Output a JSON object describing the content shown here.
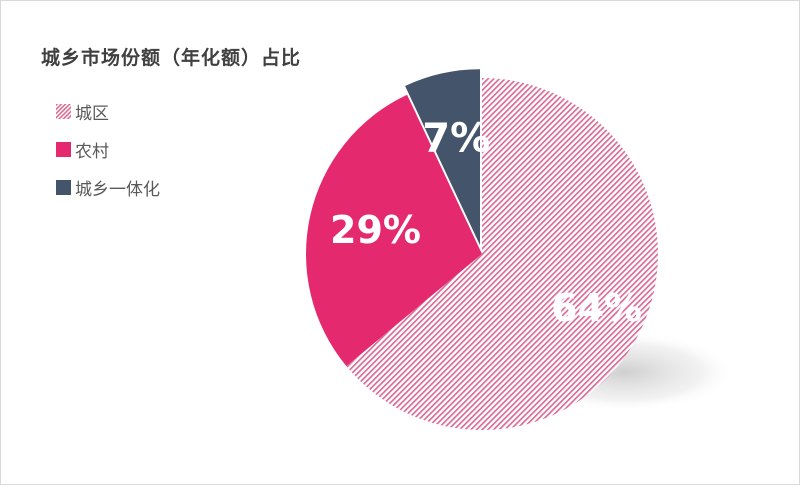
{
  "chart_data": {
    "type": "pie",
    "title": "城乡市场份额（年化额）占比",
    "categories": [
      "城区",
      "农村",
      "城乡一体化"
    ],
    "values": [
      64,
      29,
      7
    ],
    "data_labels": [
      "64%",
      "29%",
      "7%"
    ],
    "colors": [
      "#d96d95",
      "#e5296f",
      "#44546a"
    ],
    "patterns": [
      "diagonal-hatch",
      "solid",
      "solid"
    ],
    "legend_position": "left",
    "exploded_slice": "城乡一体化"
  }
}
